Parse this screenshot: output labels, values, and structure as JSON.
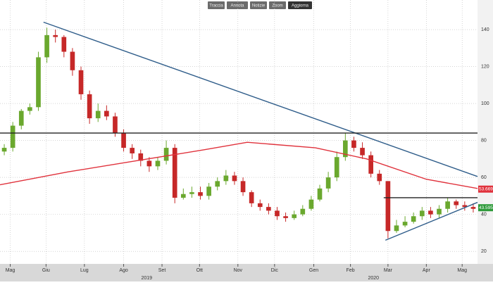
{
  "toolbar": [
    "Traccia",
    "Annota",
    "Notizie",
    "Zoom",
    "Aggiorna"
  ],
  "chart_data": {
    "type": "candlestick",
    "x": [
      0.5,
      1.5,
      2.5,
      3.5,
      4.5,
      5.5,
      6.5,
      7.5,
      8.5,
      9.5,
      10.5,
      11.5,
      12.5,
      13.5,
      14.5,
      15.5,
      16.5,
      17.5,
      18.5,
      19.5,
      20.5,
      21.5,
      22.5,
      23.5,
      24.5,
      25.5,
      26.5,
      27.5,
      28.5,
      29.5,
      30.5,
      31.5,
      32.5,
      33.5,
      34.5,
      35.5,
      36.5,
      37.5,
      38.5,
      39.5,
      40.5,
      41.5,
      42.5,
      43.5,
      44.5,
      45.5,
      46.5,
      47.5,
      48.5,
      49.5,
      50.5,
      51.5,
      52.5,
      53.5,
      54.5,
      55.5
    ],
    "open": [
      74,
      76,
      88,
      96,
      98,
      125,
      137,
      136,
      128,
      118,
      105,
      92,
      96,
      93,
      84,
      76,
      73,
      69,
      66,
      69,
      76,
      49,
      51,
      52,
      50,
      55,
      58,
      61,
      58,
      52,
      46,
      44,
      42,
      39,
      38,
      40,
      43,
      48,
      54,
      60,
      71,
      80,
      76,
      72,
      62,
      58,
      31,
      34,
      36,
      39,
      42,
      40,
      43,
      47,
      45,
      44
    ],
    "high": [
      78,
      90,
      97,
      100,
      128,
      141,
      140,
      137,
      130,
      120,
      107,
      100,
      99,
      95,
      86,
      78,
      75,
      71,
      71,
      80,
      78,
      54,
      55,
      55,
      57,
      60,
      64,
      63,
      60,
      53,
      48,
      46,
      44,
      41,
      42,
      45,
      50,
      56,
      63,
      74,
      84,
      82,
      79,
      74,
      64,
      58,
      37,
      39,
      41,
      44,
      44,
      45,
      49,
      48,
      47,
      46
    ],
    "low": [
      72,
      74,
      86,
      94,
      96,
      122,
      133,
      125,
      115,
      102,
      89,
      90,
      91,
      82,
      74,
      70,
      66,
      63,
      64,
      67,
      46,
      48,
      49,
      48,
      48,
      53,
      56,
      56,
      50,
      44,
      42,
      40,
      37,
      36,
      37,
      39,
      42,
      47,
      52,
      58,
      69,
      74,
      70,
      60,
      56,
      27,
      30,
      33,
      35,
      37,
      38,
      38,
      41,
      43,
      42,
      41
    ],
    "close": [
      76,
      88,
      96,
      98,
      125,
      137,
      136,
      128,
      118,
      105,
      92,
      96,
      93,
      84,
      76,
      73,
      69,
      66,
      69,
      76,
      49,
      51,
      52,
      50,
      55,
      58,
      61,
      58,
      52,
      46,
      44,
      42,
      39,
      38,
      40,
      43,
      48,
      54,
      60,
      71,
      80,
      76,
      72,
      62,
      58,
      31,
      34,
      36,
      39,
      42,
      40,
      43,
      47,
      45,
      44,
      43
    ],
    "up_color": "#6aa82e",
    "down_color": "#c62828",
    "lines": [
      {
        "color": "#e0323c",
        "x": [
          0,
          8,
          16,
          24,
          29,
          37,
          43,
          50,
          56
        ],
        "values": [
          56,
          63,
          69,
          75,
          79,
          76,
          70,
          59,
          54
        ]
      },
      {
        "color": "#2f5d8a",
        "x": [
          5.1,
          56
        ],
        "values": [
          144,
          60.5
        ]
      },
      {
        "color": "#222222",
        "x": [
          0,
          56
        ],
        "values": [
          84,
          84
        ]
      },
      {
        "color": "#222222",
        "x": [
          45,
          56
        ],
        "values": [
          49,
          49
        ]
      },
      {
        "color": "#2f5d8a",
        "x": [
          45.2,
          56
        ],
        "values": [
          26,
          46.5
        ]
      }
    ],
    "price_labels": [
      {
        "value": 53.669,
        "color": "#e0323c"
      },
      {
        "value": 43.595,
        "color": "#2e9a3a"
      }
    ],
    "xlim": [
      0,
      56
    ],
    "ylim": [
      13.2,
      156
    ],
    "yticks": [
      20,
      40,
      60,
      80,
      100,
      120,
      140
    ],
    "xticks": [
      {
        "value": 1.2,
        "label": "Mag"
      },
      {
        "value": 5.4,
        "label": "Giu"
      },
      {
        "value": 9.9,
        "label": "Lug"
      },
      {
        "value": 14.5,
        "label": "Ago"
      },
      {
        "value": 19,
        "label": "Set"
      },
      {
        "value": 23.4,
        "label": "Ott"
      },
      {
        "value": 27.9,
        "label": "Nov"
      },
      {
        "value": 32.2,
        "label": "Dic"
      },
      {
        "value": 36.8,
        "label": "Gen"
      },
      {
        "value": 41.1,
        "label": "Feb"
      },
      {
        "value": 45.5,
        "label": "Mar"
      },
      {
        "value": 50,
        "label": "Apr"
      },
      {
        "value": 54.2,
        "label": "Mag"
      }
    ],
    "year_labels": [
      {
        "value": 17.2,
        "label": "2019"
      },
      {
        "value": 43.8,
        "label": "2020"
      }
    ],
    "grid": true
  }
}
